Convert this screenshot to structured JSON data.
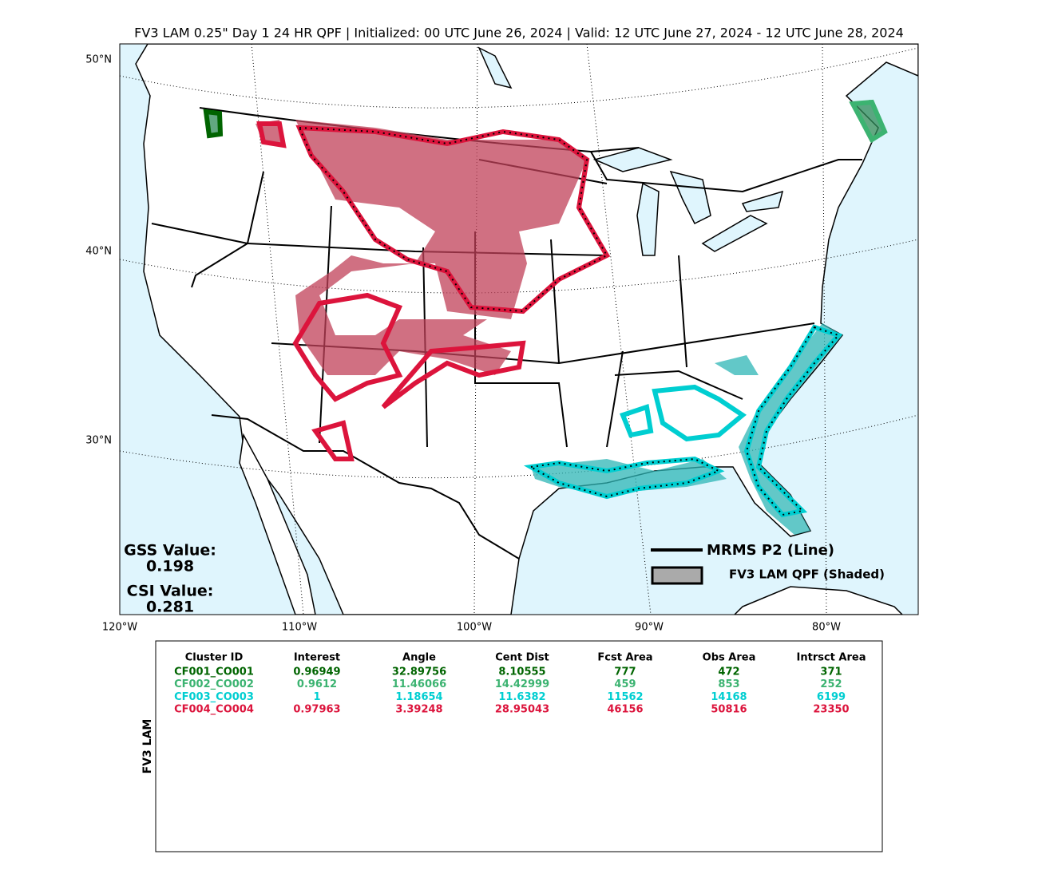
{
  "title": "FV3 LAM 0.25\" Day 1 24 HR QPF | Initialized: 00 UTC June 26, 2024 | Valid: 12 UTC June 27, 2024 - 12 UTC June 28, 2024",
  "map": {
    "lat_labels": [
      "50°N",
      "40°N",
      "30°N"
    ],
    "lon_labels": [
      "120°W",
      "110°W",
      "100°W",
      "90°W",
      "80°W"
    ]
  },
  "scores": {
    "gss_label": "GSS Value:",
    "gss_value": "0.198",
    "csi_label": "CSI Value:",
    "csi_value": "0.281"
  },
  "legend": {
    "line": "MRMS P2 (Line)",
    "shaded": "FV3 LAM QPF (Shaded)"
  },
  "table": {
    "side_label": "FV3 LAM",
    "columns": [
      "Cluster ID",
      "Interest",
      "Angle",
      "Cent Dist",
      "Fcst Area",
      "Obs Area",
      "Intrsct Area"
    ],
    "row_colors": [
      "#006400",
      "#3cb371",
      "#00ced1",
      "#dc143c"
    ],
    "rows": [
      [
        "CF001_CO001",
        0.96949,
        32.89756,
        8.10555,
        777,
        472,
        371
      ],
      [
        "CF002_CO002",
        0.9612,
        11.46066,
        14.42999,
        459,
        853,
        252
      ],
      [
        "CF003_CO003",
        1,
        1.18654,
        11.6382,
        11562,
        14168,
        6199
      ],
      [
        "CF004_CO004",
        0.97963,
        3.39248,
        28.95043,
        46156,
        50816,
        23350
      ]
    ]
  }
}
